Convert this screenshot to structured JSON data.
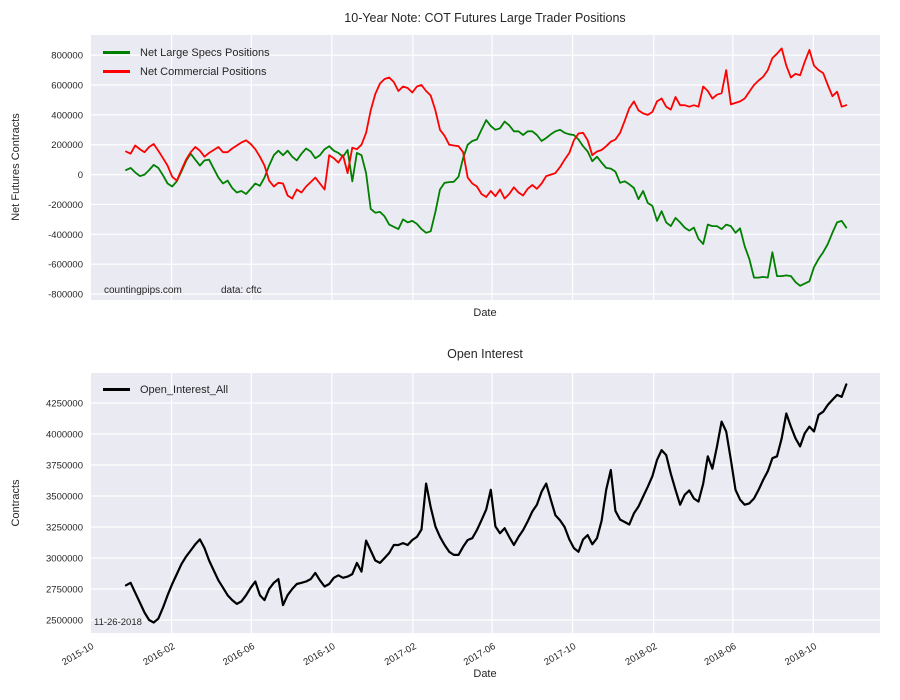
{
  "figure": {
    "background": "#ffffff",
    "panel_background": "#eaeaf2",
    "grid_color": "#ffffff",
    "text_color": "#262626"
  },
  "chart_data": [
    {
      "type": "line",
      "title": "10-Year Note: COT Futures Large Trader Positions",
      "xlabel": "Date",
      "ylabel": "Net Futures Contracts",
      "grid": true,
      "legend_position": "upper left",
      "x_tick_labels_visible": false,
      "x_start_date": "2015-11-24",
      "x_interval_days": 7,
      "xlim_weeks": [
        -7.8,
        163.3
      ],
      "x_tick_positions_weeks": [
        -7.71,
        9.86,
        27.14,
        44.57,
        62.14,
        79.29,
        96.71,
        114.29,
        131.43,
        148.86
      ],
      "ylim": [
        -840000,
        935000
      ],
      "y_ticks": [
        800000,
        600000,
        400000,
        200000,
        0,
        -200000,
        -400000,
        -600000,
        -800000
      ],
      "annotations": [
        {
          "text": "countingpips.com"
        },
        {
          "text": "data: cftc"
        }
      ],
      "series": [
        {
          "name": "Net Large Specs Positions",
          "color": "#008000",
          "values": [
            30000,
            45000,
            15000,
            -10000,
            0,
            30000,
            65000,
            45000,
            -5000,
            -60000,
            -80000,
            -45000,
            20000,
            90000,
            140000,
            100000,
            60000,
            95000,
            100000,
            40000,
            -20000,
            -60000,
            -40000,
            -90000,
            -120000,
            -110000,
            -130000,
            -95000,
            -60000,
            -75000,
            -20000,
            60000,
            130000,
            160000,
            130000,
            160000,
            120000,
            95000,
            140000,
            175000,
            155000,
            110000,
            130000,
            170000,
            190000,
            160000,
            145000,
            120000,
            165000,
            -45000,
            145000,
            130000,
            10000,
            -230000,
            -255000,
            -250000,
            -280000,
            -335000,
            -350000,
            -365000,
            -300000,
            -320000,
            -310000,
            -330000,
            -365000,
            -390000,
            -380000,
            -250000,
            -100000,
            -55000,
            -50000,
            -48000,
            -15000,
            110000,
            200000,
            225000,
            235000,
            300000,
            365000,
            325000,
            300000,
            310000,
            355000,
            330000,
            290000,
            290000,
            265000,
            290000,
            290000,
            265000,
            225000,
            245000,
            270000,
            290000,
            300000,
            280000,
            270000,
            265000,
            235000,
            190000,
            155000,
            90000,
            120000,
            80000,
            45000,
            40000,
            20000,
            -55000,
            -45000,
            -65000,
            -90000,
            -165000,
            -110000,
            -190000,
            -210000,
            -310000,
            -245000,
            -320000,
            -345000,
            -290000,
            -320000,
            -355000,
            -375000,
            -355000,
            -430000,
            -465000,
            -335000,
            -345000,
            -345000,
            -365000,
            -335000,
            -345000,
            -390000,
            -360000,
            -480000,
            -565000,
            -690000,
            -690000,
            -685000,
            -690000,
            -520000,
            -680000,
            -680000,
            -675000,
            -680000,
            -720000,
            -745000,
            -730000,
            -715000,
            -620000,
            -565000,
            -520000,
            -465000,
            -390000,
            -320000,
            -310000,
            -355000
          ]
        },
        {
          "name": "Net Commercial Positions",
          "color": "#ff0000",
          "values": [
            155000,
            140000,
            195000,
            170000,
            150000,
            185000,
            205000,
            160000,
            110000,
            60000,
            -15000,
            -40000,
            30000,
            100000,
            150000,
            185000,
            160000,
            120000,
            145000,
            165000,
            185000,
            150000,
            150000,
            175000,
            195000,
            215000,
            230000,
            205000,
            170000,
            120000,
            60000,
            -40000,
            -80000,
            -55000,
            -60000,
            -140000,
            -160000,
            -100000,
            -120000,
            -80000,
            -50000,
            -20000,
            -60000,
            -100000,
            130000,
            110000,
            80000,
            130000,
            10000,
            180000,
            170000,
            200000,
            280000,
            430000,
            540000,
            610000,
            640000,
            650000,
            620000,
            560000,
            590000,
            580000,
            550000,
            590000,
            600000,
            560000,
            530000,
            430000,
            300000,
            260000,
            200000,
            195000,
            190000,
            150000,
            -20000,
            -60000,
            -80000,
            -130000,
            -150000,
            -110000,
            -145000,
            -100000,
            -160000,
            -130000,
            -85000,
            -120000,
            -140000,
            -95000,
            -70000,
            -95000,
            -60000,
            -10000,
            0,
            10000,
            50000,
            100000,
            145000,
            230000,
            275000,
            280000,
            230000,
            130000,
            155000,
            165000,
            190000,
            220000,
            235000,
            280000,
            360000,
            445000,
            490000,
            430000,
            410000,
            400000,
            420000,
            490000,
            510000,
            455000,
            435000,
            520000,
            465000,
            465000,
            455000,
            465000,
            455000,
            590000,
            560000,
            510000,
            535000,
            545000,
            700000,
            470000,
            480000,
            490000,
            510000,
            555000,
            600000,
            630000,
            655000,
            700000,
            780000,
            810000,
            845000,
            730000,
            650000,
            675000,
            665000,
            755000,
            835000,
            730000,
            700000,
            680000,
            600000,
            525000,
            555000,
            455000,
            465000
          ]
        }
      ]
    },
    {
      "type": "line",
      "title": "Open Interest",
      "xlabel": "Date",
      "ylabel": "Contracts",
      "grid": true,
      "legend_position": "upper left",
      "x_tick_labels_visible": true,
      "x_start_date": "2015-11-24",
      "x_interval_days": 7,
      "xlim_weeks": [
        -7.8,
        163.3
      ],
      "x_tick_positions_weeks": [
        -7.71,
        9.86,
        27.14,
        44.57,
        62.14,
        79.29,
        96.71,
        114.29,
        131.43,
        148.86
      ],
      "x_tick_labels": [
        "2015-10",
        "2016-02",
        "2016-06",
        "2016-10",
        "2017-02",
        "2017-06",
        "2017-10",
        "2018-02",
        "2018-06",
        "2018-10"
      ],
      "ylim": [
        2395000,
        4492000
      ],
      "y_ticks": [
        2500000,
        2750000,
        3000000,
        3250000,
        3500000,
        3750000,
        4000000,
        4250000
      ],
      "annotations": [
        {
          "text": "11-26-2018"
        }
      ],
      "series": [
        {
          "name": "Open_Interest_All",
          "color": "#000000",
          "values": [
            2780000,
            2800000,
            2720000,
            2640000,
            2560000,
            2500000,
            2480000,
            2510000,
            2600000,
            2700000,
            2790000,
            2870000,
            2950000,
            3010000,
            3060000,
            3110000,
            3150000,
            3080000,
            2980000,
            2900000,
            2820000,
            2760000,
            2700000,
            2660000,
            2630000,
            2650000,
            2700000,
            2760000,
            2810000,
            2700000,
            2660000,
            2750000,
            2800000,
            2830000,
            2620000,
            2700000,
            2750000,
            2790000,
            2800000,
            2810000,
            2830000,
            2880000,
            2820000,
            2770000,
            2790000,
            2840000,
            2860000,
            2840000,
            2850000,
            2870000,
            2960000,
            2890000,
            3140000,
            3060000,
            2980000,
            2960000,
            3000000,
            3040000,
            3105000,
            3105000,
            3120000,
            3105000,
            3145000,
            3170000,
            3230000,
            3600000,
            3410000,
            3255000,
            3170000,
            3105000,
            3050000,
            3025000,
            3025000,
            3090000,
            3145000,
            3160000,
            3225000,
            3305000,
            3390000,
            3550000,
            3255000,
            3200000,
            3240000,
            3170000,
            3105000,
            3170000,
            3225000,
            3295000,
            3375000,
            3430000,
            3535000,
            3600000,
            3470000,
            3345000,
            3305000,
            3250000,
            3150000,
            3080000,
            3050000,
            3150000,
            3185000,
            3110000,
            3160000,
            3300000,
            3550000,
            3710000,
            3380000,
            3310000,
            3290000,
            3270000,
            3360000,
            3415000,
            3495000,
            3575000,
            3660000,
            3790000,
            3870000,
            3830000,
            3680000,
            3550000,
            3430000,
            3510000,
            3545000,
            3480000,
            3455000,
            3600000,
            3820000,
            3720000,
            3900000,
            4100000,
            4020000,
            3790000,
            3550000,
            3470000,
            3430000,
            3440000,
            3480000,
            3550000,
            3630000,
            3700000,
            3805000,
            3820000,
            3965000,
            4165000,
            4060000,
            3965000,
            3900000,
            4005000,
            4060000,
            4020000,
            4155000,
            4180000,
            4235000,
            4275000,
            4315000,
            4300000,
            4400000
          ]
        }
      ]
    }
  ]
}
